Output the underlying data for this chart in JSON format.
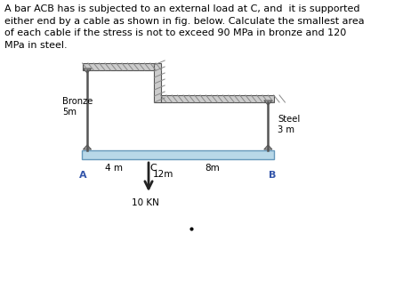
{
  "title_text": "A bar ACB has is subjected to an external load at C, and  it is supported\neither end by a cable as shown in fig. below. Calculate the smallest area\nof each cable if the stress is not to exceed 90 MPa in bronze and 120\nMPa in steel.",
  "title_fontsize": 8.0,
  "bg_color": "#ffffff",
  "bar_color": "#b8d8e8",
  "bronze_label": "Bronze\n5m",
  "steel_label": "Steel\n3 m",
  "label_4m": "4 m",
  "label_C": "C",
  "label_8m": "8m",
  "label_12m": "12m",
  "label_10kn": "10 KN",
  "label_A": "A",
  "label_B": "B",
  "arrow_color": "#222222",
  "line_color": "#555555",
  "hatch_bg": "#cccccc",
  "wall_thickness": 7
}
